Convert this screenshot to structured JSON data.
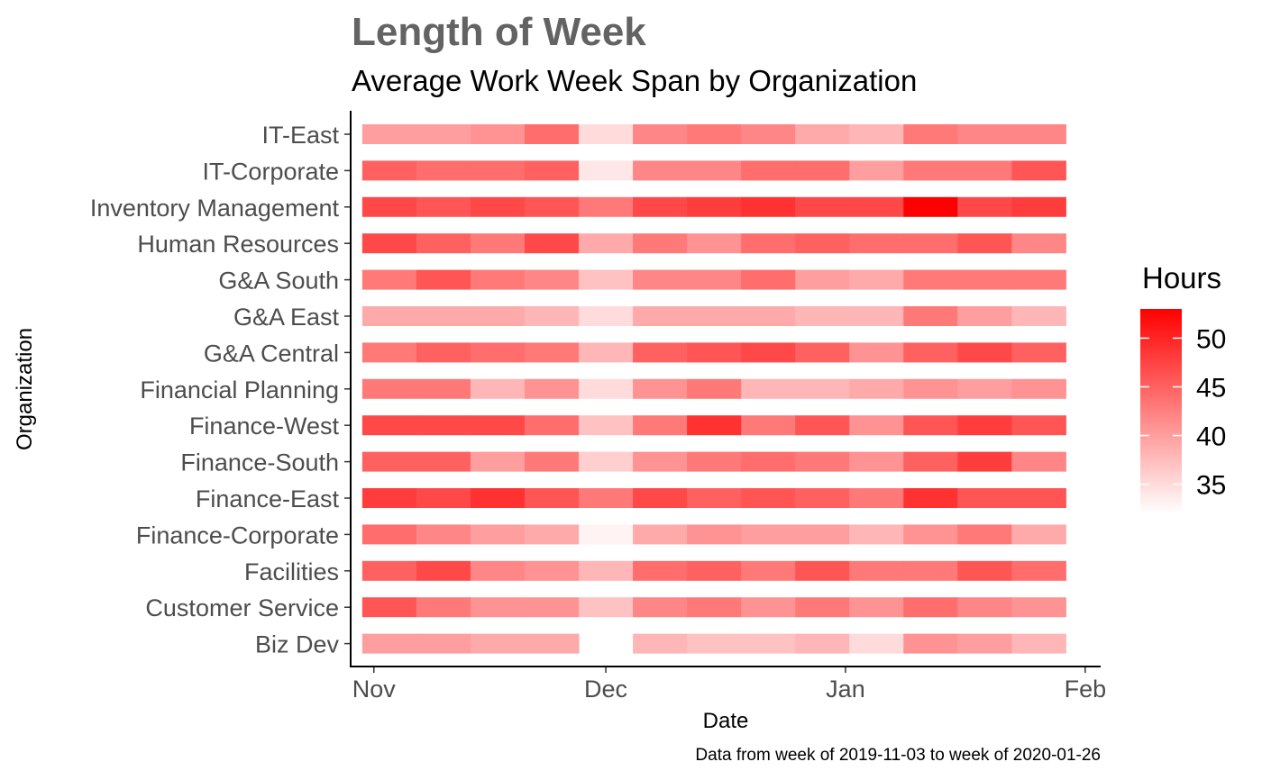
{
  "colors": {
    "low": "#ffffff",
    "high": "#ff0000",
    "axis": "#000000",
    "tick_label": "#4d4d4d",
    "title": "#636363"
  },
  "chart_data": {
    "type": "heatmap",
    "title": "Length of Week",
    "subtitle": "Average Work Week Span by Organization",
    "xlabel": "Date",
    "ylabel": "Organization",
    "caption": "Data from week of 2019-11-03 to week of 2020-01-26",
    "legend": {
      "title": "Hours",
      "position": "right",
      "breaks": [
        "35",
        "40",
        "45",
        "50"
      ],
      "limits": [
        32,
        53
      ]
    },
    "x_ticks": [
      "Nov",
      "Dec",
      "Jan",
      "Feb"
    ],
    "x_tick_dates": [
      "2019-11-01",
      "2019-12-01",
      "2020-01-01",
      "2020-02-01"
    ],
    "xlim": [
      "2019-10-29",
      "2020-02-03"
    ],
    "weeks": [
      "2019-11-03",
      "2019-11-10",
      "2019-11-17",
      "2019-11-24",
      "2019-12-01",
      "2019-12-08",
      "2019-12-15",
      "2019-12-22",
      "2019-12-29",
      "2020-01-05",
      "2020-01-12",
      "2020-01-19",
      "2020-01-26"
    ],
    "organizations": [
      "IT-East",
      "IT-Corporate",
      "Inventory Management",
      "Human Resources",
      "G&A South",
      "G&A East",
      "G&A Central",
      "Financial Planning",
      "Finance-West",
      "Finance-South",
      "Finance-East",
      "Finance-Corporate",
      "Facilities",
      "Customer Service",
      "Biz Dev"
    ],
    "values": [
      [
        40,
        40,
        41,
        44,
        35,
        42,
        43,
        42,
        39,
        38,
        43,
        42,
        42
      ],
      [
        45,
        44,
        44,
        45,
        34,
        42,
        42,
        44,
        44,
        40,
        43,
        43,
        46
      ],
      [
        47,
        46,
        47,
        46,
        43,
        47,
        48,
        49,
        47,
        47,
        53,
        47,
        48
      ],
      [
        47,
        45,
        43,
        47,
        39,
        43,
        41,
        44,
        45,
        44,
        44,
        46,
        42
      ],
      [
        43,
        46,
        43,
        42,
        37,
        42,
        42,
        44,
        40,
        39,
        43,
        43,
        43
      ],
      [
        39,
        39,
        39,
        38,
        35,
        39,
        39,
        39,
        38,
        38,
        43,
        40,
        38
      ],
      [
        43,
        45,
        44,
        43,
        38,
        45,
        46,
        47,
        45,
        41,
        45,
        47,
        45
      ],
      [
        43,
        43,
        38,
        41,
        35,
        41,
        43,
        38,
        38,
        39,
        41,
        40,
        41
      ],
      [
        47,
        47,
        47,
        44,
        37,
        43,
        49,
        43,
        46,
        41,
        46,
        48,
        46
      ],
      [
        45,
        45,
        40,
        43,
        36,
        41,
        43,
        44,
        43,
        41,
        45,
        48,
        42
      ],
      [
        48,
        47,
        49,
        46,
        43,
        47,
        45,
        46,
        45,
        43,
        49,
        46,
        46
      ],
      [
        44,
        42,
        40,
        39,
        33,
        39,
        41,
        40,
        40,
        38,
        41,
        43,
        39
      ],
      [
        45,
        47,
        42,
        41,
        38,
        44,
        45,
        43,
        46,
        43,
        43,
        46,
        44
      ],
      [
        46,
        43,
        41,
        41,
        37,
        42,
        43,
        41,
        43,
        41,
        44,
        42,
        41
      ],
      [
        40,
        40,
        39,
        39,
        null,
        38,
        37,
        37,
        38,
        35,
        41,
        40,
        38
      ]
    ]
  }
}
